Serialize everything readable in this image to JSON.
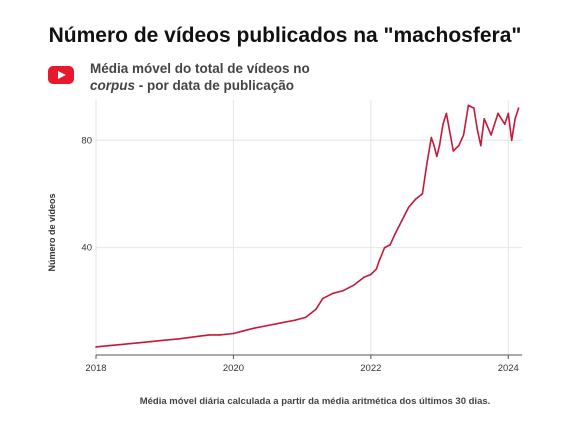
{
  "chart_data": {
    "type": "line",
    "title": "Número de vídeos publicados na \"machosfera\"",
    "subtitle_line1": "Média móvel do total de vídeos no",
    "subtitle_italic": "corpus",
    "subtitle_rest": " - por data de publicação",
    "ylabel": "Número de vídeos",
    "xlabel": "",
    "footnote": "Média móvel diária calculada a partir da média aritmética dos últimos 30 dias.",
    "xlim": [
      2018.0,
      2024.2
    ],
    "ylim": [
      0,
      95
    ],
    "x_ticks": [
      2018,
      2020,
      2022,
      2024
    ],
    "y_ticks": [
      40,
      80
    ],
    "grid": true,
    "line_color": "#c8173a",
    "icon": "youtube-icon",
    "series": [
      {
        "x": [
          2018.0,
          2018.2,
          2018.4,
          2018.6,
          2018.8,
          2019.0,
          2019.2,
          2019.35,
          2019.5,
          2019.65,
          2019.8,
          2020.0,
          2020.15,
          2020.3,
          2020.5,
          2020.7,
          2020.9,
          2021.05,
          2021.2,
          2021.3,
          2021.45,
          2021.6,
          2021.75,
          2021.9,
          2022.0,
          2022.08,
          2022.12,
          2022.2,
          2022.28,
          2022.35,
          2022.45,
          2022.55,
          2022.65,
          2022.75,
          2022.82,
          2022.88,
          2022.92,
          2022.96,
          2023.0,
          2023.05,
          2023.1,
          2023.2,
          2023.28,
          2023.35,
          2023.42,
          2023.5,
          2023.55,
          2023.6,
          2023.65,
          2023.75,
          2023.85,
          2023.95,
          2024.0,
          2024.05,
          2024.1,
          2024.15
        ],
        "y": [
          3,
          3.5,
          4,
          4.5,
          5,
          5.5,
          6,
          6.5,
          7,
          7.5,
          7.5,
          8,
          9,
          10,
          11,
          12,
          13,
          14,
          17,
          21,
          23,
          24,
          26,
          29,
          30,
          32,
          35,
          40,
          41,
          45,
          50,
          55,
          58,
          60,
          72,
          81,
          78,
          74,
          78,
          86,
          90,
          76,
          78,
          82,
          93,
          92,
          84,
          78,
          88,
          82,
          90,
          86,
          90,
          80,
          88,
          92
        ]
      }
    ]
  }
}
